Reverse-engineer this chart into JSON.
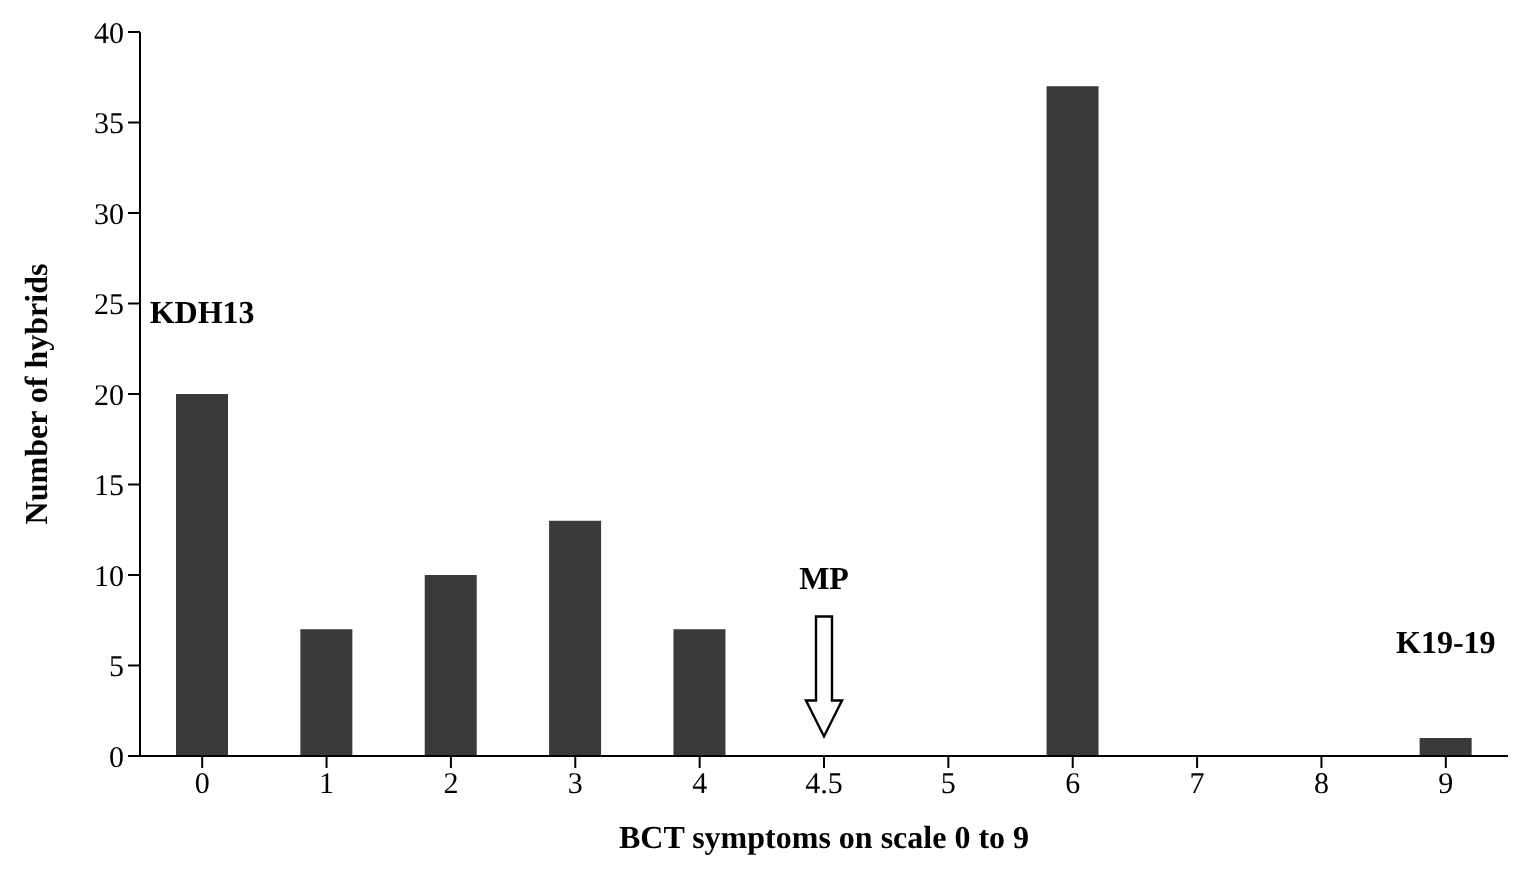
{
  "chart_data": {
    "type": "bar",
    "xlabel": "BCT symptoms on scale 0 to 9",
    "ylabel": "Number of hybrids",
    "categories": [
      "0",
      "1",
      "2",
      "3",
      "4",
      "4.5",
      "5",
      "6",
      "7",
      "8",
      "9"
    ],
    "values": [
      20,
      7,
      10,
      13,
      7,
      0,
      0,
      37,
      0,
      0,
      1
    ],
    "color": "#3a3a3a",
    "ylim": [
      0,
      40
    ],
    "yticks": [
      0,
      5,
      10,
      15,
      20,
      25,
      30,
      35,
      40
    ],
    "grid": false,
    "legend": false,
    "annotations": [
      "KDH13",
      "MP",
      "K19-19"
    ]
  }
}
